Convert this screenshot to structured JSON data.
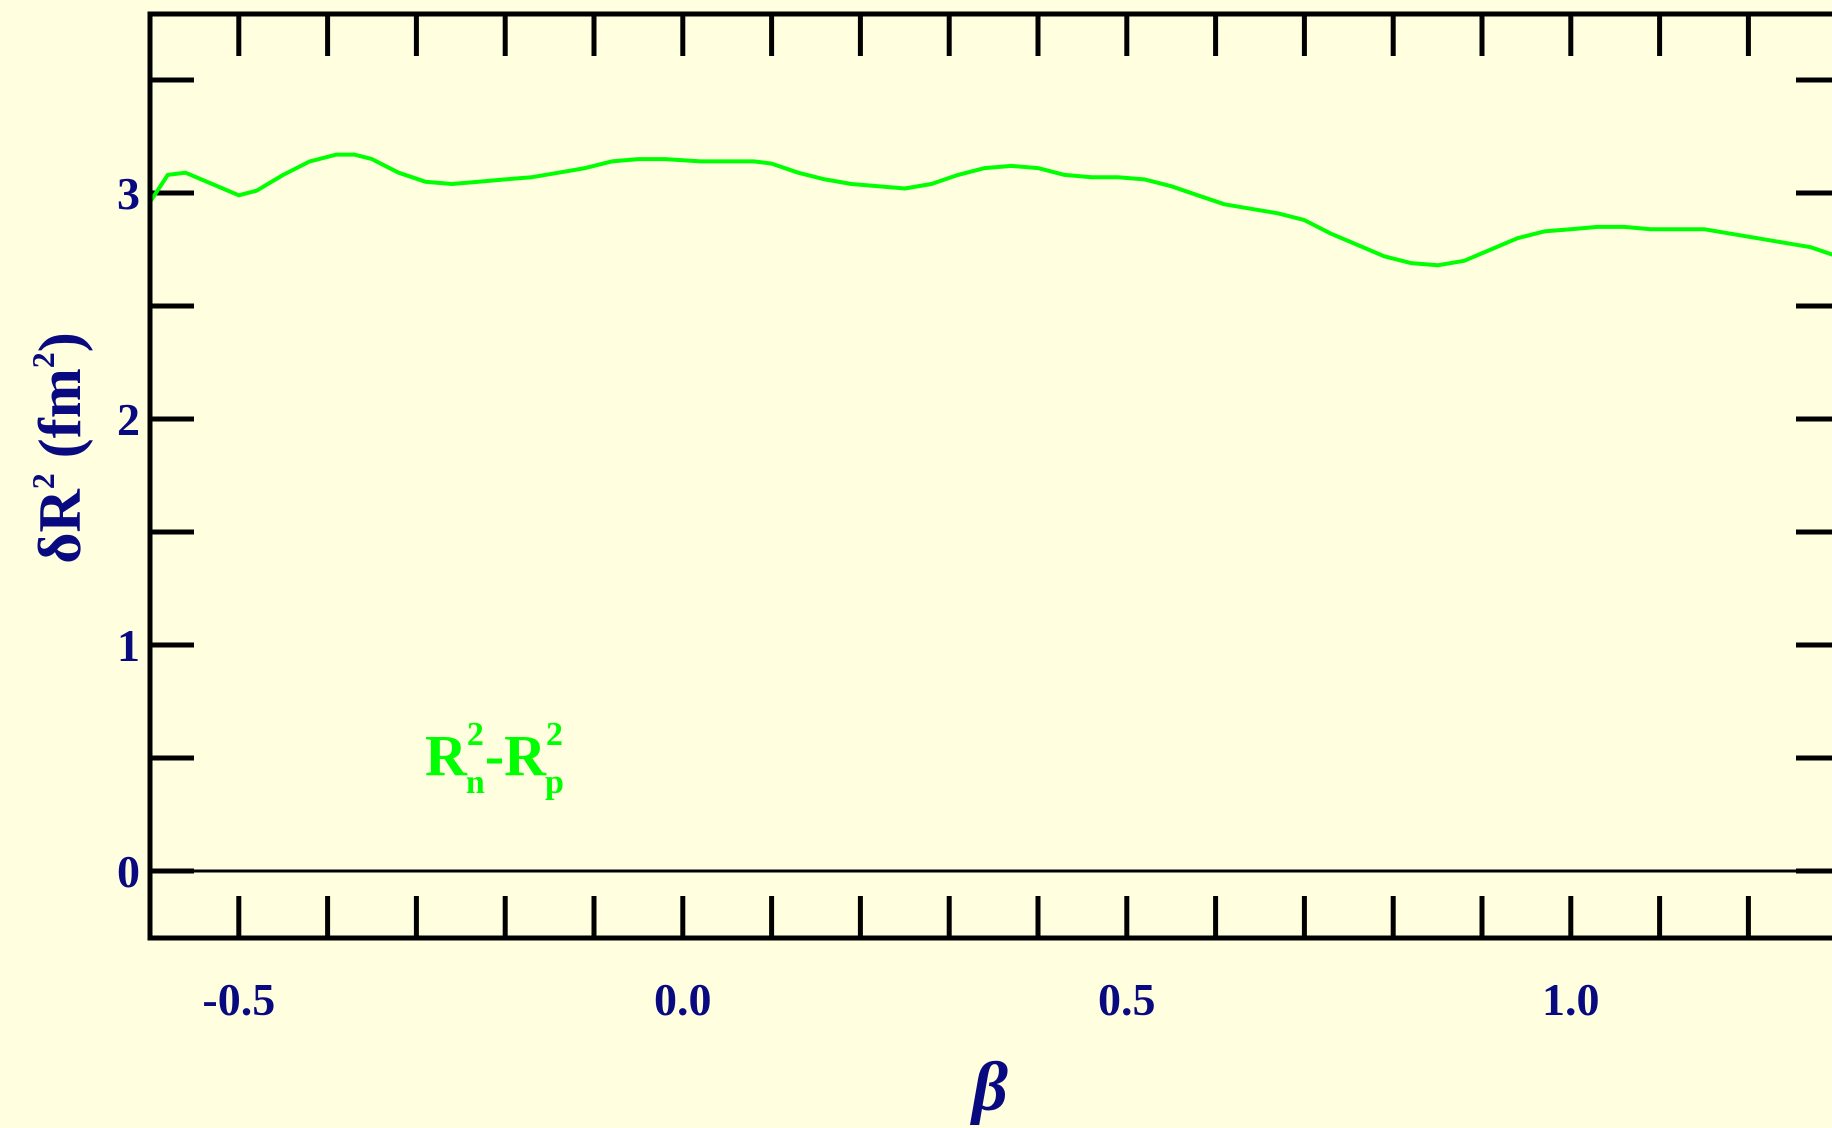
{
  "colors": {
    "background": "#ffffe0",
    "axis_text": "#0a0a80",
    "frame": "#000000",
    "series": "#00ff00"
  },
  "chart_data": {
    "type": "line",
    "title": "",
    "xlabel": "β",
    "ylabel": {
      "prefix": "δR",
      "sup": "2",
      "unit_open": " (fm",
      "unit_sup": "2",
      "unit_close": ")"
    },
    "xlim": [
      -0.6,
      1.3
    ],
    "ylim": [
      -0.3,
      3.8
    ],
    "x_ticks": [
      {
        "value": -0.5,
        "label": "-0.5"
      },
      {
        "value": 0.0,
        "label": "0.0"
      },
      {
        "value": 0.5,
        "label": "0.5"
      },
      {
        "value": 1.0,
        "label": "1.0"
      }
    ],
    "x_minor_ticks": [
      -0.4,
      -0.3,
      -0.2,
      -0.1,
      0.1,
      0.2,
      0.3,
      0.4,
      0.6,
      0.7,
      0.8,
      0.9,
      1.1,
      1.2
    ],
    "y_ticks": [
      {
        "value": 0,
        "label": "0"
      },
      {
        "value": 1,
        "label": "1"
      },
      {
        "value": 2,
        "label": "2"
      },
      {
        "value": 3,
        "label": "3"
      }
    ],
    "y_minor_ticks": [
      0.5,
      1.5,
      2.5,
      3.5
    ],
    "reference_line": {
      "y": 0
    },
    "grid": false,
    "series": [
      {
        "label": {
          "base1": "R",
          "sup1": "2",
          "sub1": "n",
          "dash": "-",
          "base2": "R",
          "sup2": "2",
          "sub2": "p"
        },
        "x": [
          -0.6,
          -0.58,
          -0.56,
          -0.53,
          -0.5,
          -0.48,
          -0.45,
          -0.42,
          -0.39,
          -0.37,
          -0.35,
          -0.32,
          -0.29,
          -0.26,
          -0.23,
          -0.2,
          -0.17,
          -0.14,
          -0.11,
          -0.08,
          -0.05,
          -0.02,
          0.02,
          0.05,
          0.08,
          0.1,
          0.13,
          0.16,
          0.19,
          0.22,
          0.25,
          0.28,
          0.31,
          0.34,
          0.37,
          0.4,
          0.43,
          0.46,
          0.49,
          0.52,
          0.55,
          0.58,
          0.61,
          0.64,
          0.67,
          0.7,
          0.73,
          0.76,
          0.79,
          0.82,
          0.85,
          0.88,
          0.91,
          0.94,
          0.97,
          1.0,
          1.03,
          1.06,
          1.09,
          1.12,
          1.15,
          1.18,
          1.21,
          1.24,
          1.27,
          1.3
        ],
        "y": [
          2.96,
          3.08,
          3.09,
          3.04,
          2.99,
          3.01,
          3.08,
          3.14,
          3.17,
          3.17,
          3.15,
          3.09,
          3.05,
          3.04,
          3.05,
          3.06,
          3.07,
          3.09,
          3.11,
          3.14,
          3.15,
          3.15,
          3.14,
          3.14,
          3.14,
          3.13,
          3.09,
          3.06,
          3.04,
          3.03,
          3.02,
          3.04,
          3.08,
          3.11,
          3.12,
          3.11,
          3.08,
          3.07,
          3.07,
          3.06,
          3.03,
          2.99,
          2.95,
          2.93,
          2.91,
          2.88,
          2.82,
          2.77,
          2.72,
          2.69,
          2.68,
          2.7,
          2.75,
          2.8,
          2.83,
          2.84,
          2.85,
          2.85,
          2.84,
          2.84,
          2.84,
          2.82,
          2.8,
          2.78,
          2.76,
          2.72
        ]
      }
    ]
  }
}
